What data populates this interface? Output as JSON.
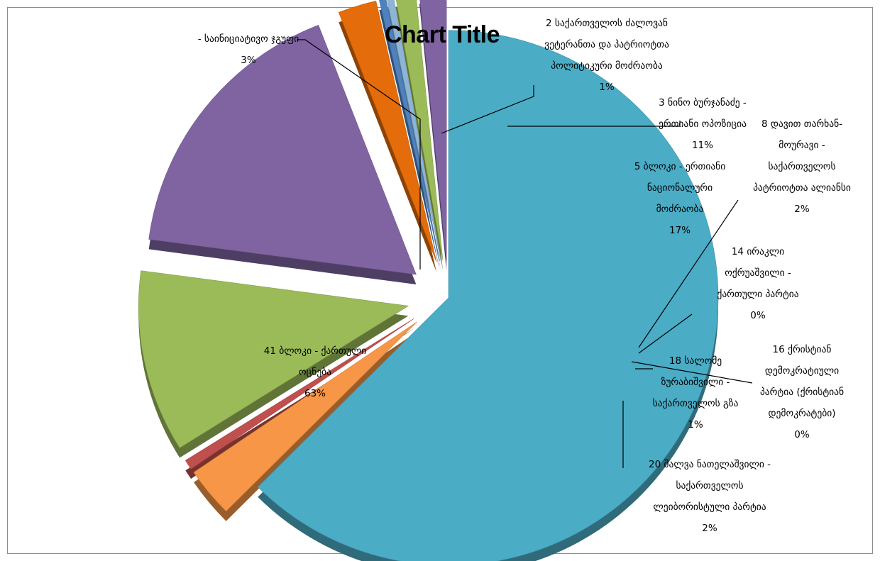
{
  "chart_data": {
    "type": "pie",
    "title": "Chart Title",
    "style": "3d-exploded",
    "slices": [
      {
        "name": "41 ბლოკი - ქართული ოცნება",
        "pct_label": "63%",
        "value": 62.5,
        "color": "#4bacc6"
      },
      {
        "name": "- საინიციატივო ჯგუფი",
        "pct_label": "3%",
        "value": 3.0,
        "color": "#f79646"
      },
      {
        "name": "2 საქართველოს ძალოვან ვეტერანთა და პატრიოტთა პოლიტიკური მოძრაობა",
        "pct_label": "1%",
        "value": 0.6,
        "color": "#c0504d"
      },
      {
        "name": "3 ნინო ბურჯანაძე - ერთიანი ოპოზიცია",
        "pct_label": "11%",
        "value": 11.0,
        "color": "#9bbb59"
      },
      {
        "name": "5 ბლოკი - ერთიანი ნაციონალური მოძრაობა",
        "pct_label": "17%",
        "value": 17.0,
        "color": "#8064a2"
      },
      {
        "name": "8 დავით თარხან-მოურავი - საქართველოს პატრიოტთა ალიანსი",
        "pct_label": "2%",
        "value": 2.3,
        "color": "#e46c0a"
      },
      {
        "name": "14 ირაკლი ოქრუაშვილი - ქართული პარტია",
        "pct_label": "0%",
        "value": 0.4,
        "color": "#4f81bd"
      },
      {
        "name": "16 ქრისტიან დემოკრატიული პარტია (ქრისტიან დემოკრატები)",
        "pct_label": "0%",
        "value": 0.4,
        "color": "#8cb5d8"
      },
      {
        "name": "18 სალომე ზურაბიშვილი - საქართველოს გზა",
        "pct_label": "1%",
        "value": 1.2,
        "color": "#9bbb59"
      },
      {
        "name": "20 შალვა ნათელაშვილი - საქართველოს ლეიბორისტული პარტია",
        "pct_label": "2%",
        "value": 1.6,
        "color": "#8064a2"
      }
    ],
    "label_lines": [
      [
        "41 ბლოკი - ქართული",
        "ოცნება",
        "63%"
      ],
      [
        "- საინიციატივო ჯგუფი",
        "3%"
      ],
      [
        "2 საქართველოს ძალოვან",
        "ვეტერანთა და პატრიოტთა",
        "პოლიტიკური მოძრაობა",
        "1%"
      ],
      [
        "3 ნინო ბურჯანაძე -",
        "ერთიანი ოპოზიცია",
        "11%"
      ],
      [
        "5 ბლოკი - ერთიანი",
        "ნაციონალური",
        "მოძრაობა",
        "17%"
      ],
      [
        "8 დავით თარხან-",
        "მოურავი -",
        "საქართველოს",
        "პატრიოტთა ალიანსი",
        "2%"
      ],
      [
        "14 ირაკლი",
        "ოქრუაშვილი -",
        "ქართული პარტია",
        "0%"
      ],
      [
        "16 ქრისტიან",
        "დემოკრატიული",
        "პარტია (ქრისტიან",
        "დემოკრატები)",
        "0%"
      ],
      [
        "18 სალომე",
        "ზურაბიშვილი -",
        "საქართველოს გზა",
        "1%"
      ],
      [
        "20 შალვა ნათელაშვილი -",
        "საქართველოს",
        "ლეიბორისტული პარტია",
        "2%"
      ]
    ],
    "legend": "none",
    "grid": false
  }
}
